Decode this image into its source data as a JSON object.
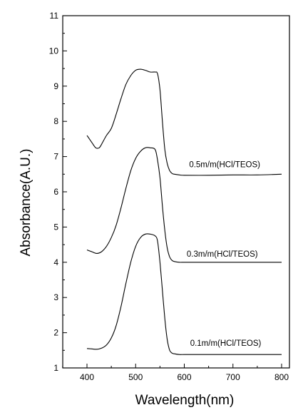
{
  "chart_data": {
    "type": "line",
    "xlabel": "Wavelength(nm)",
    "ylabel": "Absorbance(A.U.)",
    "xlim": [
      350,
      820
    ],
    "ylim": [
      1,
      11
    ],
    "xticks": [
      400,
      500,
      600,
      700,
      800
    ],
    "yticks": [
      1,
      2,
      3,
      4,
      5,
      6,
      7,
      8,
      9,
      10,
      11
    ],
    "grid": false,
    "legend": "none",
    "series": [
      {
        "name": "0.5m/m(HCl/TEOS)",
        "x": [
          400,
          410,
          418,
          425,
          430,
          440,
          450,
          460,
          470,
          480,
          490,
          500,
          510,
          520,
          530,
          540,
          545,
          550,
          555,
          560,
          565,
          570,
          575,
          580,
          590,
          600,
          650,
          700,
          750,
          800
        ],
        "y": [
          7.6,
          7.4,
          7.25,
          7.25,
          7.35,
          7.6,
          7.8,
          8.2,
          8.65,
          9.05,
          9.3,
          9.45,
          9.48,
          9.45,
          9.4,
          9.4,
          9.35,
          8.9,
          8.0,
          7.2,
          6.8,
          6.6,
          6.52,
          6.5,
          6.48,
          6.47,
          6.47,
          6.48,
          6.48,
          6.5
        ]
      },
      {
        "name": "0.3m/m(HCl/TEOS)",
        "x": [
          400,
          410,
          420,
          430,
          440,
          450,
          460,
          470,
          480,
          490,
          500,
          510,
          520,
          530,
          540,
          545,
          550,
          555,
          560,
          565,
          570,
          575,
          580,
          590,
          600,
          650,
          700,
          750,
          800
        ],
        "y": [
          4.35,
          4.3,
          4.25,
          4.3,
          4.45,
          4.7,
          5.05,
          5.55,
          6.1,
          6.6,
          6.95,
          7.15,
          7.25,
          7.25,
          7.2,
          6.9,
          6.4,
          5.6,
          4.9,
          4.4,
          4.15,
          4.05,
          4.02,
          4.0,
          4.0,
          4.0,
          4.0,
          4.0,
          4.0
        ]
      },
      {
        "name": "0.1m/m(HCl/TEOS)",
        "x": [
          400,
          410,
          420,
          430,
          440,
          450,
          460,
          470,
          480,
          490,
          500,
          510,
          520,
          530,
          540,
          545,
          550,
          555,
          560,
          565,
          570,
          575,
          580,
          590,
          600,
          650,
          700,
          750,
          800
        ],
        "y": [
          1.55,
          1.54,
          1.53,
          1.56,
          1.65,
          1.85,
          2.2,
          2.75,
          3.4,
          4.0,
          4.45,
          4.7,
          4.8,
          4.8,
          4.75,
          4.6,
          4.0,
          3.2,
          2.4,
          1.8,
          1.5,
          1.42,
          1.4,
          1.38,
          1.38,
          1.38,
          1.38,
          1.38,
          1.38
        ]
      }
    ]
  }
}
